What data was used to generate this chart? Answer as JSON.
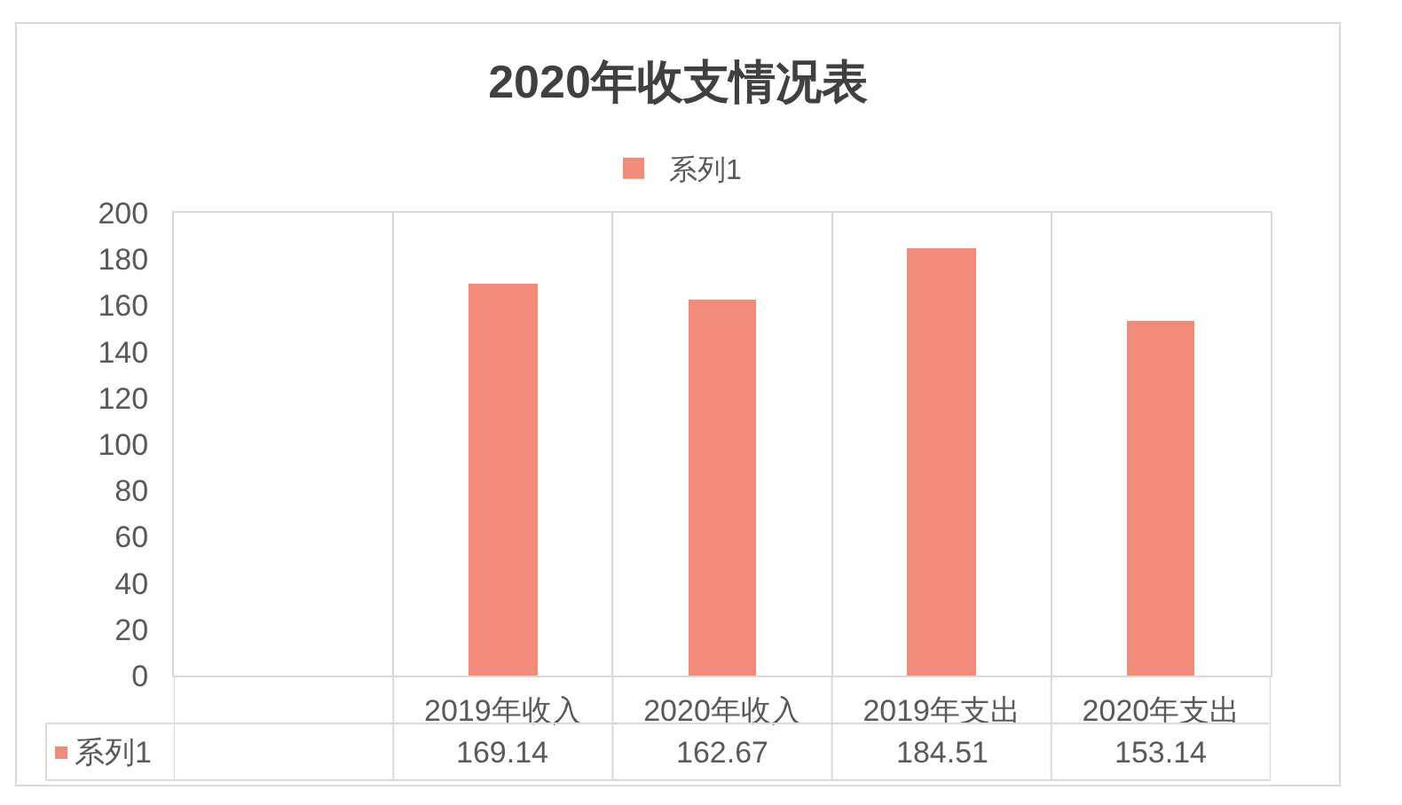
{
  "chart_data": {
    "type": "bar",
    "title": "2020年收支情况表",
    "categories": [
      null,
      "2019年收入",
      "2020年收入",
      "2019年支出",
      "2020年支出"
    ],
    "series": [
      {
        "name": "系列1",
        "color": "#f28c78",
        "values": [
          null,
          169.14,
          162.67,
          184.51,
          153.14
        ]
      }
    ],
    "ylim": [
      0,
      200
    ],
    "yticks": [
      0,
      20,
      40,
      60,
      80,
      100,
      120,
      140,
      160,
      180,
      200
    ],
    "grid": "x",
    "legend": "top",
    "data_labels": true
  }
}
